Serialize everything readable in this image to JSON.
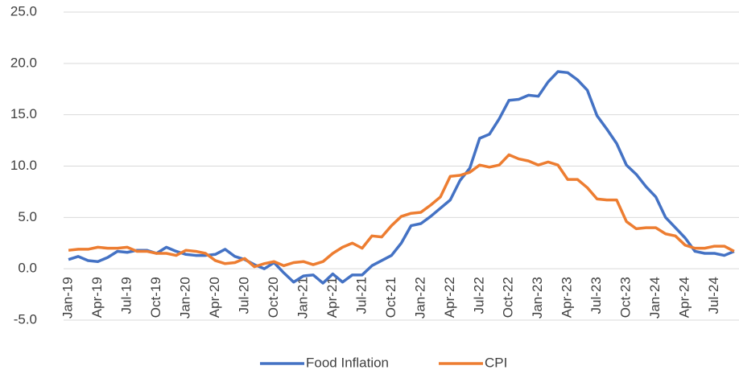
{
  "chart_data": {
    "type": "line",
    "categories": [
      "Jan-19",
      null,
      null,
      "Apr-19",
      null,
      null,
      "Jul-19",
      null,
      null,
      "Oct-19",
      null,
      null,
      "Jan-20",
      null,
      null,
      "Apr-20",
      null,
      null,
      "Jul-20",
      null,
      null,
      "Oct-20",
      null,
      null,
      "Jan-21",
      null,
      null,
      "Apr-21",
      null,
      null,
      "Jul-21",
      null,
      null,
      "Oct-21",
      null,
      null,
      "Jan-22",
      null,
      null,
      "Apr-22",
      null,
      null,
      "Jul-22",
      null,
      null,
      "Oct-22",
      null,
      null,
      "Jan-23",
      null,
      null,
      "Apr-23",
      null,
      null,
      "Jul-23",
      null,
      null,
      "Oct-23",
      null,
      null,
      "Jan-24",
      null,
      null,
      "Apr-24",
      null,
      null,
      "Jul-24",
      null,
      null
    ],
    "series": [
      {
        "name": "Food Inflation",
        "color": "#4472c4",
        "values": [
          0.9,
          1.2,
          0.8,
          0.7,
          1.1,
          1.7,
          1.6,
          1.8,
          1.8,
          1.5,
          2.1,
          1.7,
          1.4,
          1.3,
          1.3,
          1.4,
          1.9,
          1.2,
          0.9,
          0.4,
          0.0,
          0.6,
          -0.4,
          -1.3,
          -0.7,
          -0.6,
          -1.4,
          -0.5,
          -1.3,
          -0.6,
          -0.6,
          0.3,
          0.8,
          1.3,
          2.5,
          4.2,
          4.4,
          5.1,
          5.9,
          6.7,
          8.6,
          9.8,
          12.7,
          13.1,
          14.6,
          16.4,
          16.5,
          16.9,
          16.8,
          18.2,
          19.2,
          19.1,
          18.4,
          17.4,
          14.9,
          13.6,
          12.2,
          10.1,
          9.2,
          8.0,
          7.0,
          5.0,
          4.0,
          3.0,
          1.7,
          1.5,
          1.5,
          1.3,
          1.7
        ]
      },
      {
        "name": "CPI",
        "color": "#ed7d31",
        "values": [
          1.8,
          1.9,
          1.9,
          2.1,
          2.0,
          2.0,
          2.1,
          1.7,
          1.7,
          1.5,
          1.5,
          1.3,
          1.8,
          1.7,
          1.5,
          0.8,
          0.5,
          0.6,
          1.0,
          0.2,
          0.5,
          0.7,
          0.3,
          0.6,
          0.7,
          0.4,
          0.7,
          1.5,
          2.1,
          2.5,
          2.0,
          3.2,
          3.1,
          4.2,
          5.1,
          5.4,
          5.5,
          6.2,
          7.0,
          9.0,
          9.1,
          9.4,
          10.1,
          9.9,
          10.1,
          11.1,
          10.7,
          10.5,
          10.1,
          10.4,
          10.1,
          8.7,
          8.7,
          7.9,
          6.8,
          6.7,
          6.7,
          4.6,
          3.9,
          4.0,
          4.0,
          3.4,
          3.2,
          2.3,
          2.0,
          2.0,
          2.2,
          2.2,
          1.7
        ]
      }
    ],
    "ylim": [
      -5,
      25
    ],
    "yticks": [
      {
        "value": -5,
        "label": "-5.0"
      },
      {
        "value": 0,
        "label": "0.0"
      },
      {
        "value": 5,
        "label": "5.0"
      },
      {
        "value": 10,
        "label": "10.0"
      },
      {
        "value": 15,
        "label": "15.0"
      },
      {
        "value": 20,
        "label": "20.0"
      },
      {
        "value": 25,
        "label": "25.0"
      }
    ],
    "grid": true,
    "legend": "bottom"
  }
}
